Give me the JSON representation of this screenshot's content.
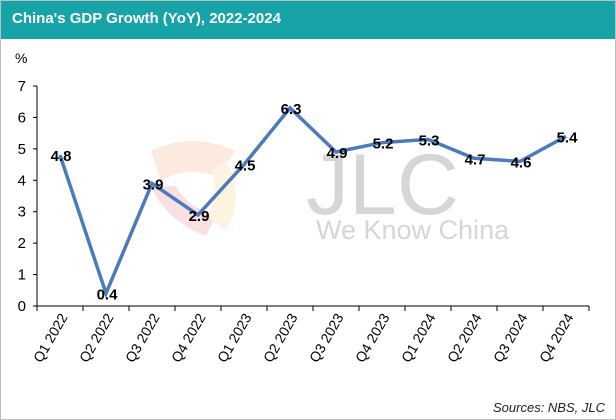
{
  "header": {
    "title": "China's GDP Growth (YoY), 2022-2024"
  },
  "footer": {
    "source": "Sources: NBS, JLC"
  },
  "watermark": {
    "logo": "JLC",
    "tagline": "We Know China"
  },
  "colors": {
    "title_bar": "#17a4a8",
    "line": "#4a7bbd"
  },
  "chart_data": {
    "type": "line",
    "title": "China's GDP Growth (YoY), 2022-2024",
    "ylabel": "%",
    "xlabel": "",
    "ylim": [
      0,
      7
    ],
    "yticks": [
      0,
      1,
      2,
      3,
      4,
      5,
      6,
      7
    ],
    "grid": false,
    "categories": [
      "Q1 2022",
      "Q2 2022",
      "Q3 2022",
      "Q4 2022",
      "Q1 2023",
      "Q2 2023",
      "Q3 2023",
      "Q4 2023",
      "Q1 2024",
      "Q2 2024",
      "Q3 2024",
      "Q4 2024"
    ],
    "series": [
      {
        "values": [
          4.8,
          0.4,
          3.9,
          2.9,
          4.5,
          6.3,
          4.9,
          5.2,
          5.3,
          4.7,
          4.6,
          5.4
        ]
      }
    ]
  }
}
